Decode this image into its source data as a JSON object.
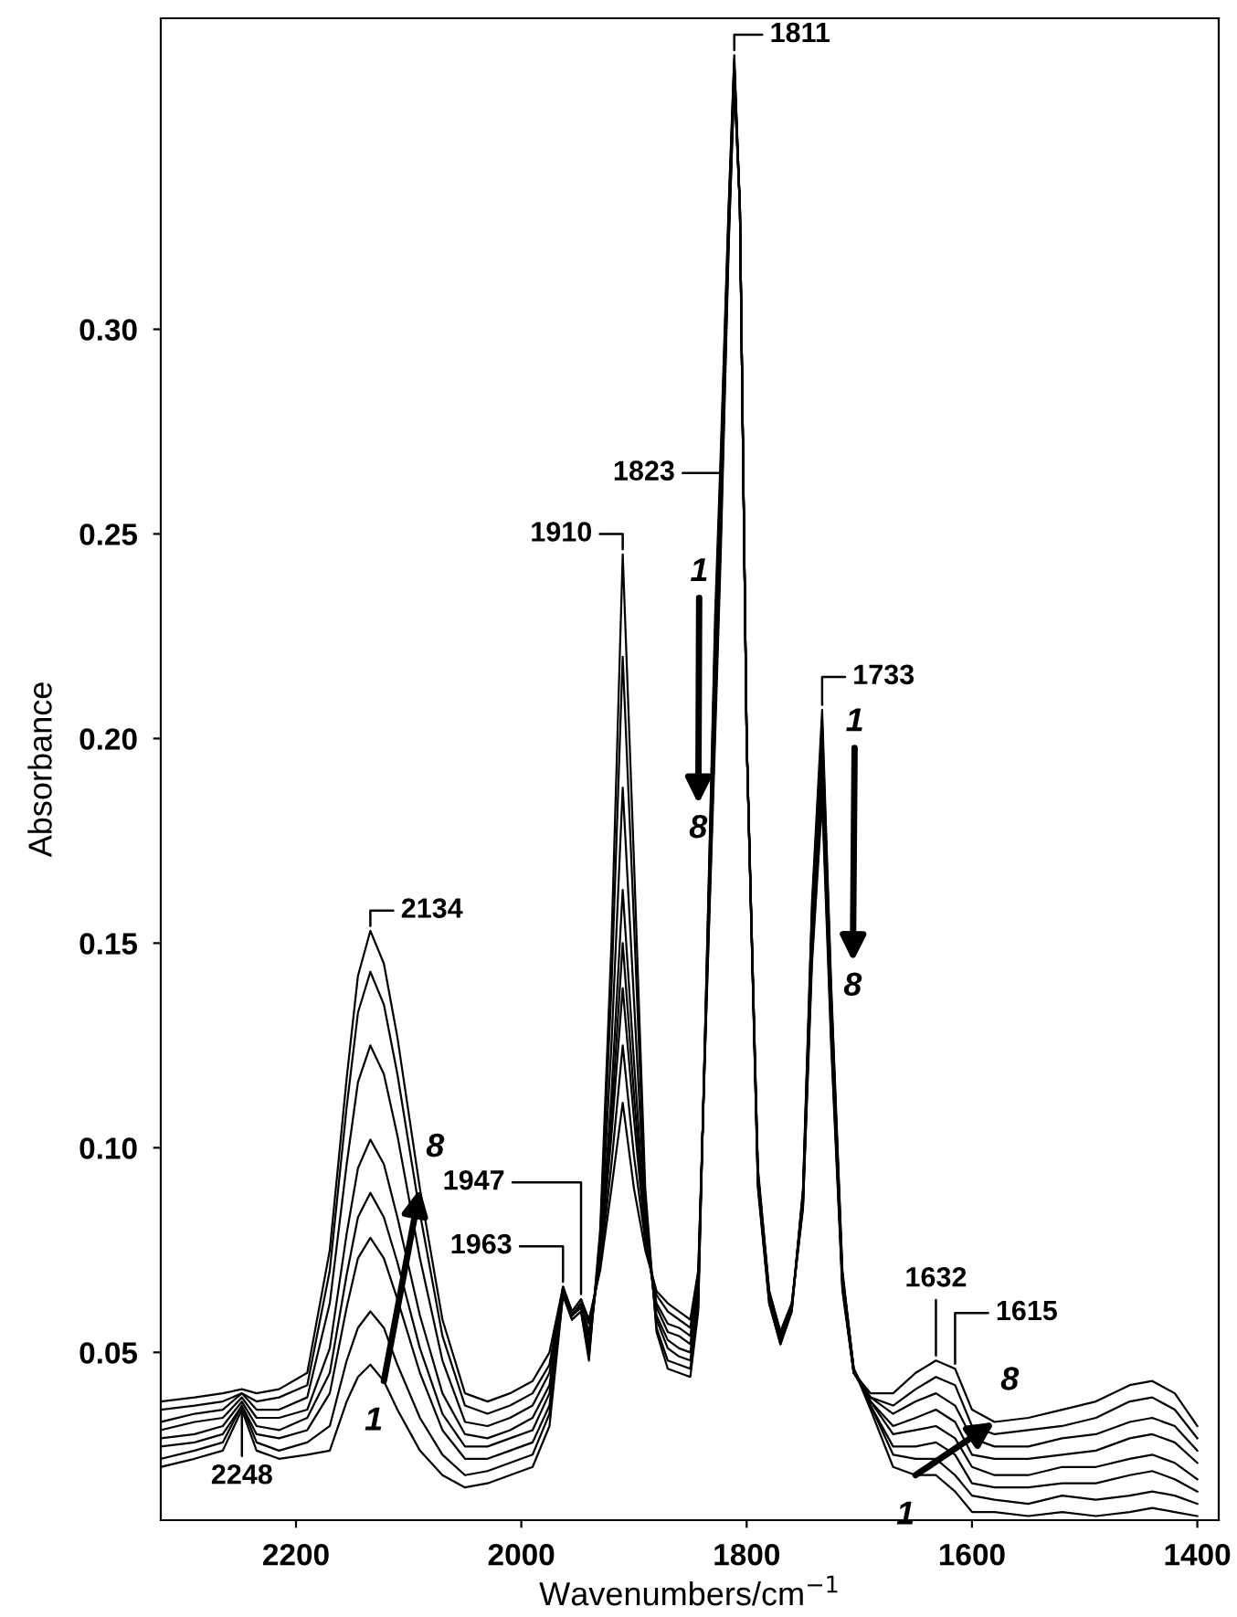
{
  "chart_data": {
    "type": "line",
    "xlabel": "Wavenumbers/cm$^{−1}$",
    "ylabel": "Absorbance",
    "xlim": [
      2320,
      1381
    ],
    "ylim": [
      0.009,
      0.376
    ],
    "xticks": [
      2200,
      2000,
      1800,
      1600,
      1400
    ],
    "yticks": [
      {
        "value": 0.05,
        "label": "0.05"
      },
      {
        "value": 0.1,
        "label": "0.10"
      },
      {
        "value": 0.15,
        "label": "0.15"
      },
      {
        "value": 0.2,
        "label": "0.20"
      },
      {
        "value": 0.25,
        "label": "0.25"
      },
      {
        "value": 0.3,
        "label": "0.30"
      }
    ],
    "x": [
      2320,
      2290,
      2265,
      2248,
      2235,
      2215,
      2190,
      2170,
      2155,
      2145,
      2134,
      2122,
      2110,
      2090,
      2070,
      2050,
      2030,
      2010,
      1990,
      1975,
      1963,
      1955,
      1947,
      1940,
      1930,
      1920,
      1910,
      1900,
      1890,
      1880,
      1870,
      1860,
      1850,
      1843,
      1835,
      1828,
      1823,
      1816,
      1811,
      1806,
      1800,
      1790,
      1780,
      1770,
      1760,
      1750,
      1742,
      1733,
      1725,
      1715,
      1705,
      1690,
      1670,
      1650,
      1632,
      1615,
      1600,
      1580,
      1550,
      1520,
      1490,
      1460,
      1440,
      1420,
      1400
    ],
    "line_style": "solid",
    "marker": "none",
    "series": [
      {
        "color": "#000000",
        "values": [
          0.022,
          0.024,
          0.026,
          0.036,
          0.026,
          0.024,
          0.025,
          0.026,
          0.038,
          0.044,
          0.047,
          0.043,
          0.036,
          0.026,
          0.02,
          0.017,
          0.018,
          0.02,
          0.022,
          0.032,
          0.064,
          0.058,
          0.06,
          0.048,
          0.08,
          0.15,
          0.245,
          0.17,
          0.09,
          0.055,
          0.046,
          0.045,
          0.044,
          0.06,
          0.15,
          0.23,
          0.27,
          0.33,
          0.367,
          0.33,
          0.2,
          0.09,
          0.062,
          0.052,
          0.06,
          0.09,
          0.16,
          0.207,
          0.14,
          0.07,
          0.046,
          0.036,
          0.022,
          0.02,
          0.02,
          0.016,
          0.011,
          0.011,
          0.01,
          0.011,
          0.01,
          0.011,
          0.012,
          0.011,
          0.01
        ]
      },
      {
        "color": "#000000",
        "values": [
          0.024,
          0.026,
          0.028,
          0.037,
          0.028,
          0.026,
          0.028,
          0.032,
          0.048,
          0.056,
          0.06,
          0.056,
          0.047,
          0.034,
          0.025,
          0.02,
          0.021,
          0.023,
          0.025,
          0.035,
          0.064,
          0.058,
          0.06,
          0.049,
          0.078,
          0.139,
          0.22,
          0.155,
          0.087,
          0.056,
          0.048,
          0.047,
          0.046,
          0.061,
          0.149,
          0.226,
          0.266,
          0.329,
          0.366,
          0.33,
          0.2,
          0.091,
          0.062,
          0.052,
          0.06,
          0.089,
          0.158,
          0.204,
          0.138,
          0.069,
          0.046,
          0.037,
          0.025,
          0.024,
          0.024,
          0.02,
          0.015,
          0.014,
          0.013,
          0.015,
          0.014,
          0.015,
          0.016,
          0.015,
          0.013
        ]
      },
      {
        "color": "#000000",
        "values": [
          0.027,
          0.028,
          0.03,
          0.037,
          0.03,
          0.029,
          0.031,
          0.04,
          0.061,
          0.073,
          0.078,
          0.073,
          0.063,
          0.045,
          0.031,
          0.024,
          0.024,
          0.026,
          0.028,
          0.037,
          0.065,
          0.059,
          0.061,
          0.051,
          0.076,
          0.125,
          0.188,
          0.136,
          0.084,
          0.058,
          0.051,
          0.049,
          0.048,
          0.063,
          0.147,
          0.221,
          0.263,
          0.327,
          0.365,
          0.33,
          0.2,
          0.091,
          0.063,
          0.053,
          0.061,
          0.089,
          0.156,
          0.201,
          0.136,
          0.069,
          0.046,
          0.037,
          0.027,
          0.027,
          0.028,
          0.025,
          0.018,
          0.017,
          0.017,
          0.018,
          0.018,
          0.02,
          0.021,
          0.019,
          0.016
        ]
      },
      {
        "color": "#000000",
        "values": [
          0.029,
          0.03,
          0.032,
          0.038,
          0.032,
          0.031,
          0.034,
          0.045,
          0.069,
          0.083,
          0.089,
          0.083,
          0.072,
          0.051,
          0.035,
          0.027,
          0.027,
          0.029,
          0.031,
          0.04,
          0.065,
          0.059,
          0.061,
          0.052,
          0.074,
          0.113,
          0.163,
          0.121,
          0.081,
          0.059,
          0.053,
          0.051,
          0.05,
          0.064,
          0.146,
          0.217,
          0.259,
          0.326,
          0.364,
          0.33,
          0.2,
          0.092,
          0.063,
          0.053,
          0.061,
          0.088,
          0.154,
          0.197,
          0.134,
          0.068,
          0.046,
          0.038,
          0.03,
          0.031,
          0.032,
          0.029,
          0.022,
          0.02,
          0.02,
          0.022,
          0.022,
          0.024,
          0.025,
          0.023,
          0.019
        ]
      },
      {
        "color": "#000000",
        "values": [
          0.031,
          0.033,
          0.034,
          0.039,
          0.034,
          0.034,
          0.036,
          0.051,
          0.079,
          0.095,
          0.102,
          0.096,
          0.083,
          0.059,
          0.04,
          0.03,
          0.029,
          0.031,
          0.034,
          0.042,
          0.065,
          0.059,
          0.062,
          0.054,
          0.073,
          0.107,
          0.15,
          0.113,
          0.079,
          0.061,
          0.055,
          0.054,
          0.052,
          0.066,
          0.144,
          0.213,
          0.256,
          0.324,
          0.363,
          0.33,
          0.2,
          0.093,
          0.064,
          0.054,
          0.061,
          0.087,
          0.151,
          0.194,
          0.131,
          0.067,
          0.045,
          0.038,
          0.032,
          0.034,
          0.036,
          0.033,
          0.025,
          0.024,
          0.024,
          0.025,
          0.026,
          0.029,
          0.03,
          0.028,
          0.023
        ]
      },
      {
        "color": "#000000",
        "values": [
          0.033,
          0.035,
          0.036,
          0.04,
          0.036,
          0.036,
          0.039,
          0.062,
          0.096,
          0.116,
          0.125,
          0.118,
          0.103,
          0.073,
          0.048,
          0.033,
          0.032,
          0.034,
          0.037,
          0.045,
          0.066,
          0.059,
          0.062,
          0.055,
          0.072,
          0.103,
          0.139,
          0.107,
          0.078,
          0.062,
          0.057,
          0.056,
          0.054,
          0.067,
          0.143,
          0.209,
          0.252,
          0.323,
          0.362,
          0.33,
          0.2,
          0.094,
          0.064,
          0.054,
          0.061,
          0.086,
          0.149,
          0.191,
          0.129,
          0.066,
          0.045,
          0.039,
          0.035,
          0.038,
          0.04,
          0.037,
          0.029,
          0.027,
          0.027,
          0.029,
          0.03,
          0.033,
          0.034,
          0.032,
          0.026
        ]
      },
      {
        "color": "#000000",
        "values": [
          0.036,
          0.037,
          0.038,
          0.04,
          0.038,
          0.039,
          0.042,
          0.07,
          0.11,
          0.133,
          0.143,
          0.135,
          0.118,
          0.084,
          0.054,
          0.037,
          0.035,
          0.037,
          0.04,
          0.047,
          0.066,
          0.06,
          0.063,
          0.057,
          0.071,
          0.096,
          0.125,
          0.098,
          0.077,
          0.064,
          0.06,
          0.058,
          0.056,
          0.069,
          0.141,
          0.204,
          0.249,
          0.321,
          0.361,
          0.33,
          0.2,
          0.094,
          0.065,
          0.055,
          0.062,
          0.086,
          0.147,
          0.188,
          0.127,
          0.066,
          0.045,
          0.039,
          0.037,
          0.041,
          0.044,
          0.042,
          0.032,
          0.03,
          0.031,
          0.032,
          0.034,
          0.038,
          0.039,
          0.036,
          0.029
        ]
      },
      {
        "color": "#000000",
        "values": [
          0.038,
          0.039,
          0.04,
          0.041,
          0.04,
          0.041,
          0.045,
          0.075,
          0.117,
          0.142,
          0.153,
          0.145,
          0.127,
          0.09,
          0.058,
          0.04,
          0.038,
          0.04,
          0.043,
          0.05,
          0.066,
          0.06,
          0.063,
          0.058,
          0.07,
          0.09,
          0.111,
          0.09,
          0.075,
          0.065,
          0.062,
          0.06,
          0.058,
          0.07,
          0.14,
          0.2,
          0.245,
          0.32,
          0.36,
          0.33,
          0.2,
          0.095,
          0.065,
          0.055,
          0.062,
          0.085,
          0.145,
          0.185,
          0.125,
          0.065,
          0.045,
          0.04,
          0.04,
          0.045,
          0.048,
          0.046,
          0.036,
          0.033,
          0.034,
          0.036,
          0.038,
          0.042,
          0.043,
          0.04,
          0.032
        ]
      }
    ],
    "annotations": [
      {
        "text": "2134",
        "x": 2134,
        "y": 0.153
      },
      {
        "text": "2248",
        "x": 2248,
        "y": 0.037
      },
      {
        "text": "1963",
        "x": 1963,
        "y": 0.066
      },
      {
        "text": "1947",
        "x": 1947,
        "y": 0.063
      },
      {
        "text": "1910",
        "x": 1910,
        "y": 0.245
      },
      {
        "text": "1823",
        "x": 1823,
        "y": 0.25
      },
      {
        "text": "1811",
        "x": 1811,
        "y": 0.367
      },
      {
        "text": "1733",
        "x": 1733,
        "y": 0.207
      },
      {
        "text": "1632",
        "x": 1632,
        "y": 0.048
      },
      {
        "text": "1615",
        "x": 1615,
        "y": 0.046
      },
      {
        "text": "1",
        "x": 2122,
        "y": 0.043
      },
      {
        "text": "8",
        "x": 2090,
        "y": 0.09
      },
      "1",
      "8",
      "1",
      "8",
      {
        "text": "1",
        "x": 1650,
        "y": 0.02
      },
      {
        "text": "8",
        "x": 1580,
        "y": 0.033
      }
    ]
  }
}
